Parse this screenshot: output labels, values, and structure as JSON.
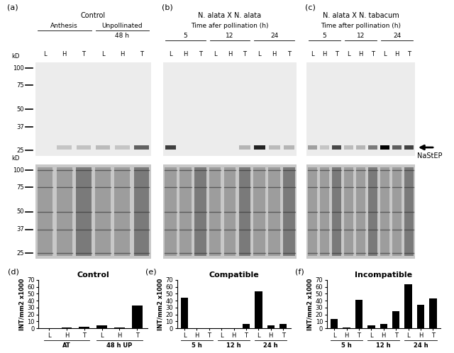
{
  "blot_panels": [
    {
      "panel": "(a)",
      "title": "Control",
      "groups": [
        {
          "label": "Anthesis"
        },
        {
          "label": "Unpollinated",
          "sublabel": "48 h"
        }
      ],
      "lanes": [
        "L",
        "H",
        "T",
        "L",
        "H",
        "T"
      ]
    },
    {
      "panel": "(b)",
      "title": "N. alata X N. alata",
      "subtitle": "Time afer pollination (h)",
      "groups": [
        {
          "label": "5"
        },
        {
          "label": "12"
        },
        {
          "label": "24"
        }
      ],
      "lanes": [
        "L",
        "H",
        "T",
        "L",
        "H",
        "T",
        "L",
        "H",
        "T"
      ]
    },
    {
      "panel": "(c)",
      "title": "N. alata X N. tabacum",
      "subtitle": "Time after pollination (h)",
      "groups": [
        {
          "label": "5"
        },
        {
          "label": "12"
        },
        {
          "label": "24"
        }
      ],
      "lanes": [
        "L",
        "H",
        "T",
        "L",
        "H",
        "T",
        "L",
        "H",
        "T"
      ]
    }
  ],
  "size_marker_unit": "kD",
  "size_markers": [
    100,
    75,
    50,
    37,
    25
  ],
  "band_label": "NaStEP",
  "chart_data": [
    {
      "type": "bar",
      "panel": "(d)",
      "title": "Control",
      "y_label": "INT/mm2 x1000",
      "categories": [
        "L",
        "H",
        "T",
        "L",
        "H",
        "T"
      ],
      "groups": [
        "AT",
        "48 h UP"
      ],
      "values": [
        0,
        1,
        2,
        4,
        1,
        33
      ],
      "color": "#000000",
      "ylim": [
        0,
        70
      ],
      "yticks": [
        0,
        10,
        20,
        30,
        40,
        50,
        60,
        70
      ],
      "grid": false
    },
    {
      "type": "bar",
      "panel": "(e)",
      "title": "Compatible",
      "y_label": "INT/mm2 x1000",
      "categories": [
        "L",
        "H",
        "T",
        "L",
        "H",
        "T",
        "L",
        "H",
        "T"
      ],
      "groups": [
        "5 h",
        "12 h",
        "24 h"
      ],
      "values": [
        44,
        0,
        0,
        0,
        0,
        6,
        53,
        4,
        6
      ],
      "color": "#000000",
      "ylim": [
        0,
        70
      ],
      "yticks": [
        0,
        10,
        20,
        30,
        40,
        50,
        60,
        70
      ],
      "grid": false
    },
    {
      "type": "bar",
      "panel": "(f)",
      "title": "Incompatible",
      "y_label": "INT/mm2 x1000",
      "categories": [
        "L",
        "H",
        "T",
        "L",
        "H",
        "T",
        "L",
        "H",
        "T"
      ],
      "groups": [
        "5 h",
        "12 h",
        "24 h"
      ],
      "values": [
        13,
        1,
        41,
        4,
        6,
        25,
        64,
        34,
        43
      ],
      "color": "#000000",
      "ylim": [
        0,
        70
      ],
      "yticks": [
        0,
        10,
        20,
        30,
        40,
        50,
        60,
        70
      ],
      "grid": false
    }
  ]
}
